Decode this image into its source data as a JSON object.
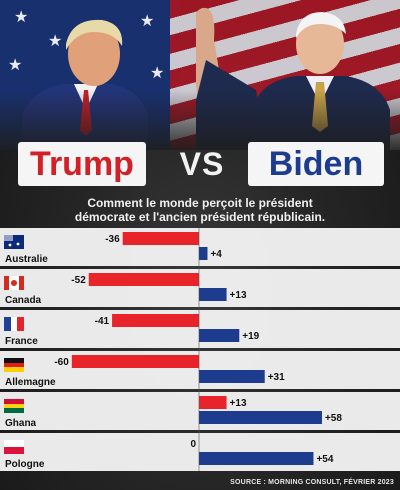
{
  "header": {
    "left_name": "Trump",
    "vs": "VS",
    "right_name": "Biden",
    "subtitle_line1": "Comment le monde perçoit le président",
    "subtitle_line2": "démocrate et l'ancien président républicain."
  },
  "source": "SOURCE : MORNING CONSULT, FÉVRIER 2023",
  "colors": {
    "trump": "#e8232a",
    "biden": "#1d3c8e",
    "panel": "#f3f3f3"
  },
  "chart_data": {
    "type": "bar",
    "orientation": "horizontal",
    "categories": [
      "Australie",
      "Canada",
      "France",
      "Allemagne",
      "Ghana",
      "Pologne"
    ],
    "flags": [
      "australia-flag-icon",
      "canada-flag-icon",
      "france-flag-icon",
      "germany-flag-icon",
      "ghana-flag-icon",
      "poland-flag-icon"
    ],
    "value_labels": {
      "Trump": [
        "-36",
        "-52",
        "-41",
        "-60",
        "+13",
        "0"
      ],
      "Biden": [
        "+4",
        "+13",
        "+19",
        "+31",
        "+58",
        "+54"
      ]
    },
    "series": [
      {
        "name": "Trump",
        "values": [
          -36,
          -52,
          -41,
          -60,
          13,
          0
        ]
      },
      {
        "name": "Biden",
        "values": [
          4,
          13,
          19,
          31,
          58,
          54
        ]
      }
    ],
    "xlim": [
      -70,
      70
    ]
  }
}
